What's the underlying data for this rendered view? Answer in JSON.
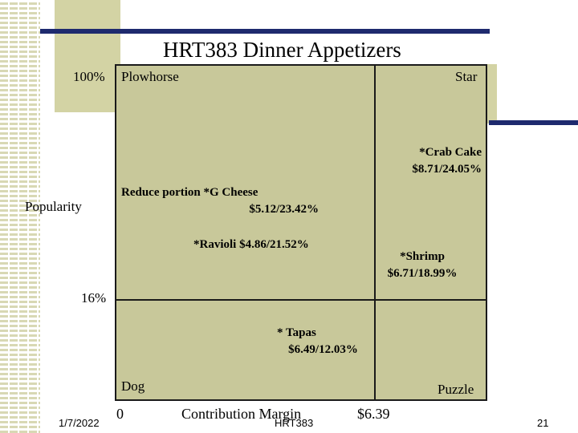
{
  "slide": {
    "title": "HRT383 Dinner Appetizers",
    "date": "1/7/2022",
    "course": "HRT383",
    "page_number": "21"
  },
  "menu_matrix": {
    "y_axis": {
      "label": "Popularity",
      "top_tick": "100%",
      "mid_tick": "16%"
    },
    "x_axis": {
      "label": "Contribution Margin",
      "origin_tick": "0",
      "mid_tick": "$6.39"
    },
    "quadrants": {
      "plowhorse": "Plowhorse",
      "star": "Star",
      "dog": "Dog",
      "puzzle": "Puzzle"
    },
    "annotation": "Reduce portion",
    "items": [
      {
        "name": "*Crab Cake",
        "value": "$8.71/24.05%"
      },
      {
        "name": "*G Cheese",
        "value": "$5.12/23.42%"
      },
      {
        "name": "*Ravioli $4.86/21.52%",
        "value": ""
      },
      {
        "name": "*Shrimp",
        "value": "$6.71/18.99%"
      },
      {
        "name": "* Tapas",
        "value": "$6.49/12.03%"
      }
    ]
  }
}
